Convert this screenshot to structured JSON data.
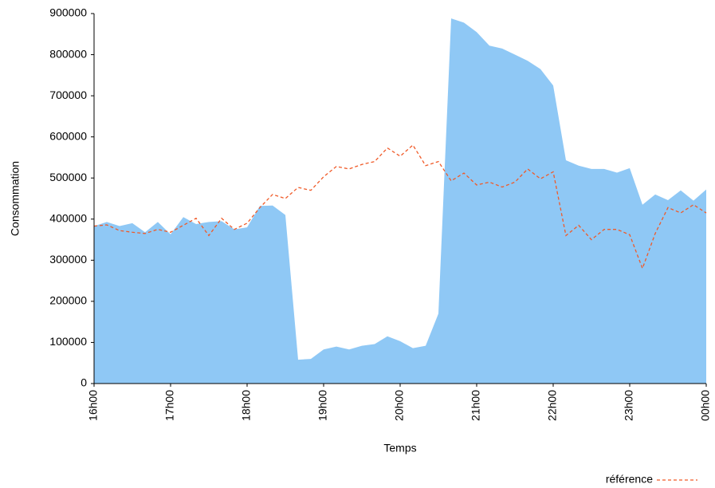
{
  "chart_data": {
    "type": "area",
    "ylabel": "Consommation",
    "xlabel": "Temps",
    "categories": [
      "16h00",
      null,
      null,
      null,
      null,
      null,
      "17h00",
      null,
      null,
      null,
      null,
      null,
      "18h00",
      null,
      null,
      null,
      null,
      null,
      "19h00",
      null,
      null,
      null,
      null,
      null,
      "20h00",
      null,
      null,
      null,
      null,
      null,
      "21h00",
      null,
      null,
      null,
      null,
      null,
      "22h00",
      null,
      null,
      null,
      null,
      null,
      "23h00",
      null,
      null,
      null,
      null,
      null,
      "00h00"
    ],
    "series": [
      {
        "type": "area",
        "color": "#8fc8f5",
        "values": [
          383000,
          393000,
          383000,
          390000,
          368000,
          393000,
          363000,
          405000,
          388000,
          393000,
          395000,
          375000,
          380000,
          432000,
          433000,
          410000,
          58000,
          60000,
          83000,
          90000,
          83000,
          92000,
          96000,
          115000,
          103000,
          86000,
          92000,
          170000,
          888000,
          878000,
          855000,
          822000,
          815000,
          800000,
          785000,
          765000,
          725000,
          543000,
          530000,
          522000,
          522000,
          513000,
          524000,
          435000,
          460000,
          446000,
          470000,
          445000,
          472000
        ]
      },
      {
        "type": "line",
        "name": "référence",
        "color": "#f05a28",
        "dashed": true,
        "values": [
          383000,
          386000,
          372000,
          368000,
          365000,
          375000,
          368000,
          385000,
          402000,
          360000,
          402000,
          375000,
          390000,
          428000,
          460000,
          450000,
          477000,
          470000,
          503000,
          528000,
          522000,
          533000,
          540000,
          573000,
          553000,
          580000,
          530000,
          540000,
          493000,
          512000,
          483000,
          490000,
          478000,
          490000,
          522000,
          498000,
          515000,
          360000,
          385000,
          350000,
          375000,
          375000,
          362000,
          280000,
          365000,
          428000,
          415000,
          435000,
          415000
        ]
      }
    ],
    "ylim": [
      0,
      900000
    ],
    "yticks": [
      0,
      100000,
      200000,
      300000,
      400000,
      500000,
      600000,
      700000,
      800000,
      900000
    ],
    "legend": "bottom-right"
  }
}
